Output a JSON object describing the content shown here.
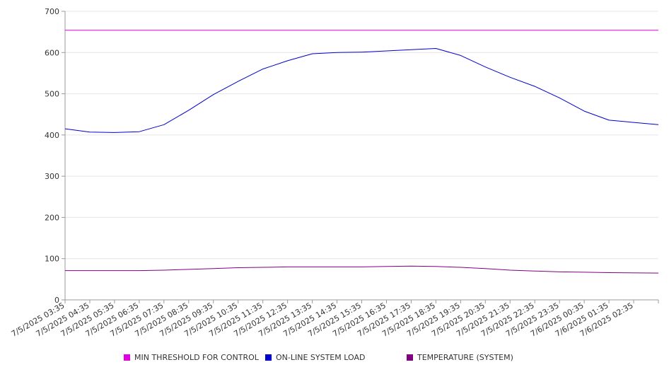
{
  "chart_data": {
    "type": "line",
    "title": "",
    "xlabel": "",
    "ylabel": "",
    "ylim": [
      0,
      700
    ],
    "yticks": [
      0,
      100,
      200,
      300,
      400,
      500,
      600,
      700
    ],
    "grid": true,
    "legend": "bottom",
    "categories": [
      "7/5/2025 03:35",
      "7/5/2025 04:35",
      "7/5/2025 05:35",
      "7/5/2025 06:35",
      "7/5/2025 07:35",
      "7/5/2025 08:35",
      "7/5/2025 09:35",
      "7/5/2025 10:35",
      "7/5/2025 11:35",
      "7/5/2025 12:35",
      "7/5/2025 13:35",
      "7/5/2025 14:35",
      "7/5/2025 15:35",
      "7/5/2025 16:35",
      "7/5/2025 17:35",
      "7/5/2025 18:35",
      "7/5/2025 19:35",
      "7/5/2025 20:35",
      "7/5/2025 21:35",
      "7/5/2025 22:35",
      "7/5/2025 23:35",
      "7/6/2025 00:35",
      "7/6/2025 01:35",
      "7/6/2025 02:35"
    ],
    "series": [
      {
        "name": "MIN THRESHOLD FOR CONTROL",
        "color": "#e000e0",
        "values": [
          654,
          654,
          654,
          654,
          654,
          654,
          654,
          654,
          654,
          654,
          654,
          654,
          654,
          654,
          654,
          654,
          654,
          654,
          654,
          654,
          654,
          654,
          654,
          654
        ]
      },
      {
        "name": "ON-LINE SYSTEM LOAD",
        "color": "#0000cc",
        "values": [
          415,
          407,
          406,
          408,
          425,
          460,
          498,
          530,
          560,
          580,
          597,
          600,
          601,
          604,
          607,
          610,
          593,
          565,
          540,
          518,
          490,
          458,
          436,
          425
        ]
      },
      {
        "name": "TEMPERATURE (SYSTEM)",
        "color": "#800080",
        "values": [
          71,
          71,
          71,
          71,
          72,
          74,
          76,
          78,
          79,
          80,
          80,
          80,
          80,
          81,
          82,
          81,
          79,
          76,
          72,
          70,
          68,
          67,
          66,
          65
        ]
      }
    ]
  }
}
